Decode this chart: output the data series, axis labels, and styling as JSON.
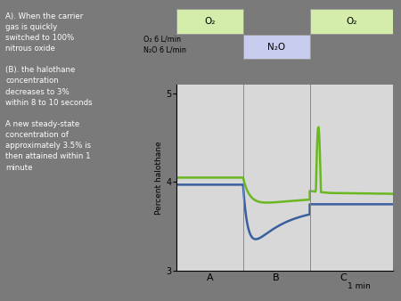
{
  "background_color": "#7a7a7a",
  "plot_bg_color": "#d8d8d8",
  "left_text": "A). When the carrier\ngas is quickly\nswitched to 100%\nnitrous oxide\n\n(B). the halothane\nconcentration\ndecreases to 3%\nwithin 8 to 10 seconds\n\nA new steady-state\nconcentration of\napproximately 3.5% is\nthen attained within 1\nminute",
  "ylabel": "Percent halothane",
  "yticks": [
    3,
    4,
    5
  ],
  "ylim": [
    3.0,
    5.1
  ],
  "sections": [
    "A",
    "B",
    "C"
  ],
  "time_label": "1 min",
  "o2_label": "O₂",
  "n2o_label": "N₂O",
  "o2_box_color": "#d4edaa",
  "n2o_box_color": "#c8ccee",
  "o2_flow_label": "O₂ 6 L/min",
  "n2o_flow_label": "N₂O 6 L/min",
  "green_color": "#6ab820",
  "blue_color": "#3a5f9f",
  "line_width": 1.8
}
